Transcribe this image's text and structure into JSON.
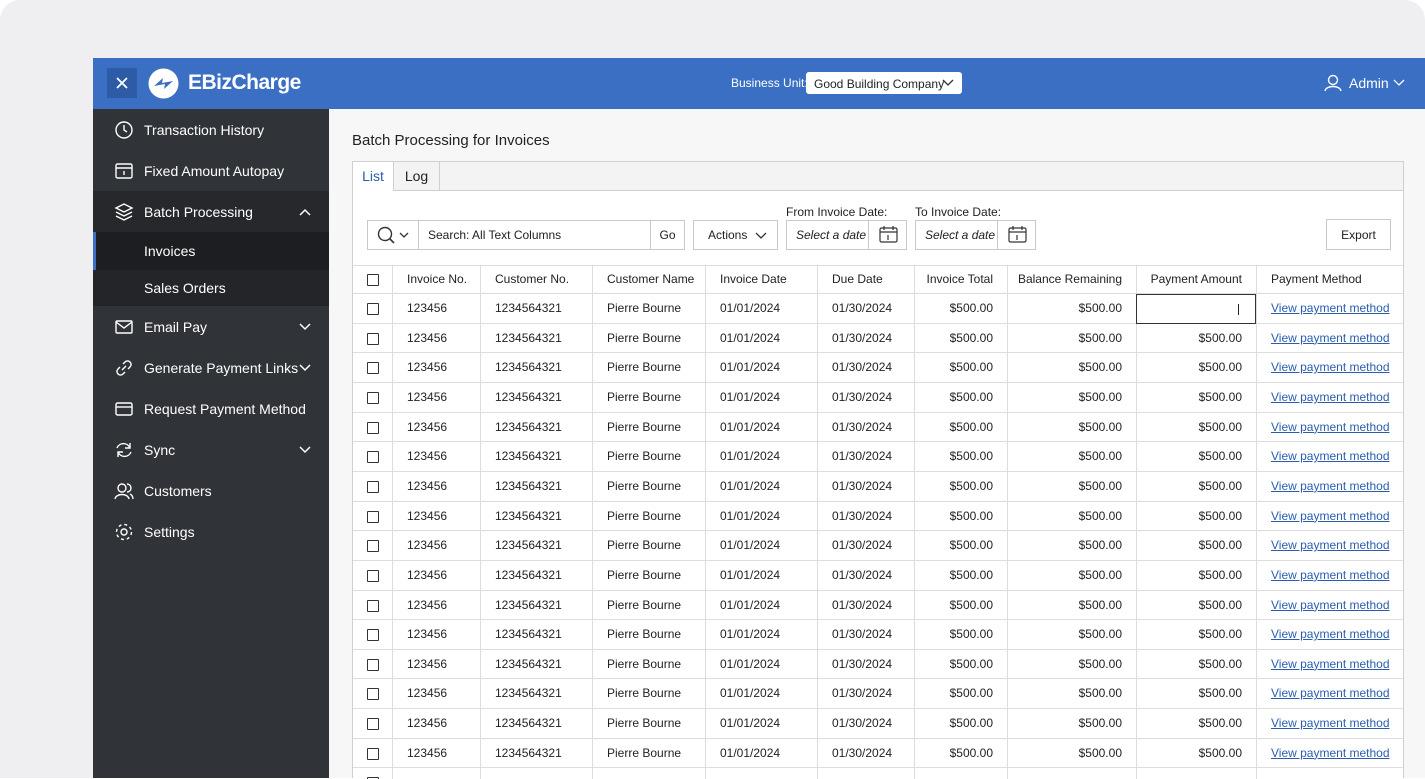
{
  "header": {
    "brand": "EBizCharge",
    "business_unit_label": "Business Unit:",
    "business_unit": "Good Building Company",
    "user": "Admin"
  },
  "sidebar": {
    "items": [
      {
        "label": "Transaction History",
        "icon": "history"
      },
      {
        "label": "Fixed Amount Autopay",
        "icon": "calendar"
      },
      {
        "label": "Batch Processing",
        "icon": "layers",
        "expanded": true,
        "children": [
          "Invoices",
          "Sales Orders"
        ],
        "active_child": 0
      },
      {
        "label": "Email Pay",
        "icon": "mail",
        "expandable": true
      },
      {
        "label": "Generate Payment Links",
        "icon": "link",
        "expandable": true
      },
      {
        "label": "Request Payment Method",
        "icon": "card"
      },
      {
        "label": "Sync",
        "icon": "sync",
        "expandable": true
      },
      {
        "label": "Customers",
        "icon": "users"
      },
      {
        "label": "Settings",
        "icon": "gear"
      }
    ]
  },
  "page": {
    "title": "Batch Processing for Invoices",
    "tabs": [
      "List",
      "Log"
    ],
    "active_tab": 0,
    "search_placeholder": "Search: All Text Columns",
    "go": "Go",
    "actions": "Actions",
    "from_label": "From Invoice Date:",
    "from_placeholder": "Select a date",
    "to_label": "To Invoice Date:",
    "to_placeholder": "Select a date",
    "export": "Export"
  },
  "table": {
    "columns": [
      "Invoice No.",
      "Customer No.",
      "Customer Name",
      "Invoice Date",
      "Due Date",
      "Invoice Total",
      "Balance Remaining",
      "Payment Amount",
      "Payment Method"
    ],
    "rows": [
      [
        "123456",
        "1234564321",
        "Pierre Bourne",
        "01/01/2024",
        "01/30/2024",
        "$500.00",
        "$500.00",
        null,
        "View payment method"
      ],
      [
        "123456",
        "1234564321",
        "Pierre Bourne",
        "01/01/2024",
        "01/30/2024",
        "$500.00",
        "$500.00",
        "$500.00",
        "View payment method"
      ],
      [
        "123456",
        "1234564321",
        "Pierre Bourne",
        "01/01/2024",
        "01/30/2024",
        "$500.00",
        "$500.00",
        "$500.00",
        "View payment method"
      ],
      [
        "123456",
        "1234564321",
        "Pierre Bourne",
        "01/01/2024",
        "01/30/2024",
        "$500.00",
        "$500.00",
        "$500.00",
        "View payment method"
      ],
      [
        "123456",
        "1234564321",
        "Pierre Bourne",
        "01/01/2024",
        "01/30/2024",
        "$500.00",
        "$500.00",
        "$500.00",
        "View payment method"
      ],
      [
        "123456",
        "1234564321",
        "Pierre Bourne",
        "01/01/2024",
        "01/30/2024",
        "$500.00",
        "$500.00",
        "$500.00",
        "View payment method"
      ],
      [
        "123456",
        "1234564321",
        "Pierre Bourne",
        "01/01/2024",
        "01/30/2024",
        "$500.00",
        "$500.00",
        "$500.00",
        "View payment method"
      ],
      [
        "123456",
        "1234564321",
        "Pierre Bourne",
        "01/01/2024",
        "01/30/2024",
        "$500.00",
        "$500.00",
        "$500.00",
        "View payment method"
      ],
      [
        "123456",
        "1234564321",
        "Pierre Bourne",
        "01/01/2024",
        "01/30/2024",
        "$500.00",
        "$500.00",
        "$500.00",
        "View payment method"
      ],
      [
        "123456",
        "1234564321",
        "Pierre Bourne",
        "01/01/2024",
        "01/30/2024",
        "$500.00",
        "$500.00",
        "$500.00",
        "View payment method"
      ],
      [
        "123456",
        "1234564321",
        "Pierre Bourne",
        "01/01/2024",
        "01/30/2024",
        "$500.00",
        "$500.00",
        "$500.00",
        "View payment method"
      ],
      [
        "123456",
        "1234564321",
        "Pierre Bourne",
        "01/01/2024",
        "01/30/2024",
        "$500.00",
        "$500.00",
        "$500.00",
        "View payment method"
      ],
      [
        "123456",
        "1234564321",
        "Pierre Bourne",
        "01/01/2024",
        "01/30/2024",
        "$500.00",
        "$500.00",
        "$500.00",
        "View payment method"
      ],
      [
        "123456",
        "1234564321",
        "Pierre Bourne",
        "01/01/2024",
        "01/30/2024",
        "$500.00",
        "$500.00",
        "$500.00",
        "View payment method"
      ],
      [
        "123456",
        "1234564321",
        "Pierre Bourne",
        "01/01/2024",
        "01/30/2024",
        "$500.00",
        "$500.00",
        "$500.00",
        "View payment method"
      ],
      [
        "123456",
        "1234564321",
        "Pierre Bourne",
        "01/01/2024",
        "01/30/2024",
        "$500.00",
        "$500.00",
        "$500.00",
        "View payment method"
      ]
    ]
  }
}
